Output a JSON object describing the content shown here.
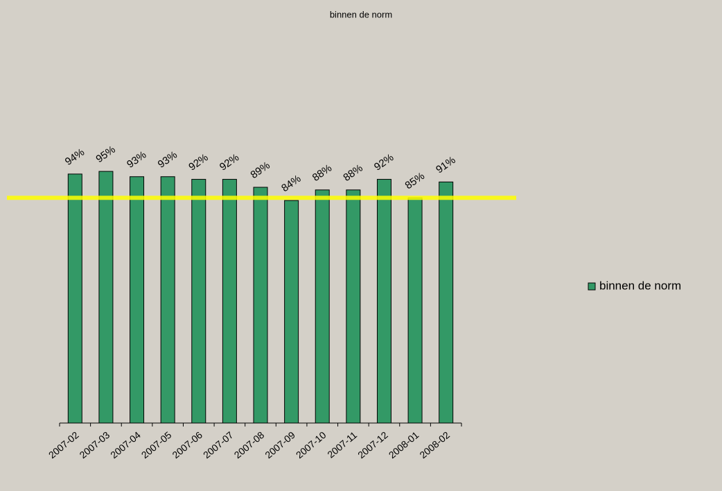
{
  "chart_data": {
    "type": "bar",
    "title": "binnen de norm",
    "categories": [
      "2007-02",
      "2007-03",
      "2007-04",
      "2007-05",
      "2007-06",
      "2007-07",
      "2007-08",
      "2007-09",
      "2007-10",
      "2007-11",
      "2007-12",
      "2008-01",
      "2008-02"
    ],
    "series": [
      {
        "name": "binnen de norm",
        "color": "#339966",
        "values": [
          94,
          95,
          93,
          93,
          92,
          92,
          89,
          84,
          88,
          88,
          92,
          85,
          91
        ],
        "value_labels": [
          "94%",
          "95%",
          "93%",
          "93%",
          "92%",
          "92%",
          "89%",
          "84%",
          "88%",
          "88%",
          "92%",
          "85%",
          "91%"
        ]
      }
    ],
    "ylim": [
      0,
      100
    ],
    "reference_line": {
      "value": 85,
      "color": "#ffff00"
    },
    "legend": "right"
  }
}
